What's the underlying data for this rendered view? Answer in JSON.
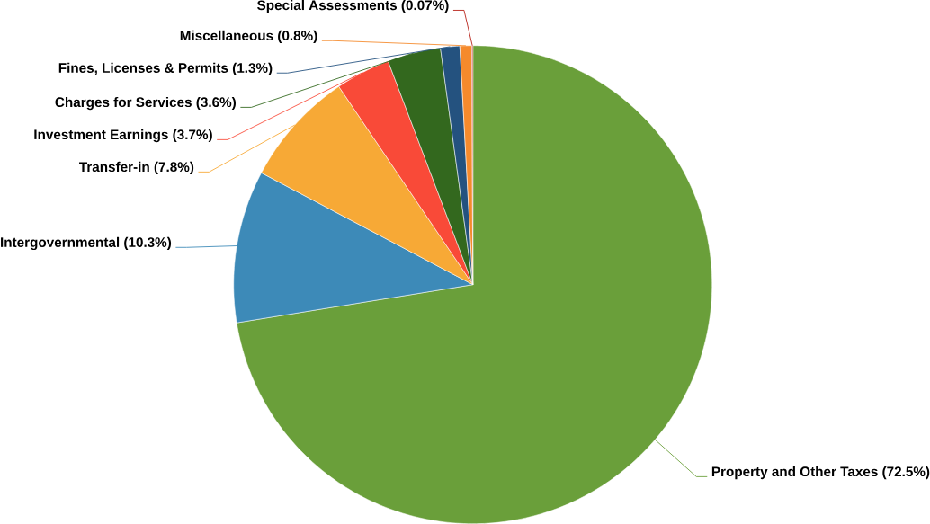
{
  "chart_data": {
    "type": "pie",
    "categories": [
      "Property and Other Taxes (72.5%)",
      "Intergovernmental (10.3%)",
      "Transfer-in (7.8%)",
      "Investment Earnings (3.7%)",
      "Charges for Services (3.6%)",
      "Fines, Licenses & Permits (1.3%)",
      "Miscellaneous (0.8%)",
      "Special Assessments (0.07%)"
    ],
    "values": [
      72.5,
      10.3,
      7.8,
      3.7,
      3.6,
      1.3,
      0.8,
      0.07
    ],
    "colors": [
      "#6a9f3a",
      "#3d8ab8",
      "#f7a936",
      "#f94a38",
      "#33681e",
      "#24527f",
      "#f58a2c",
      "#b51d14"
    ]
  }
}
